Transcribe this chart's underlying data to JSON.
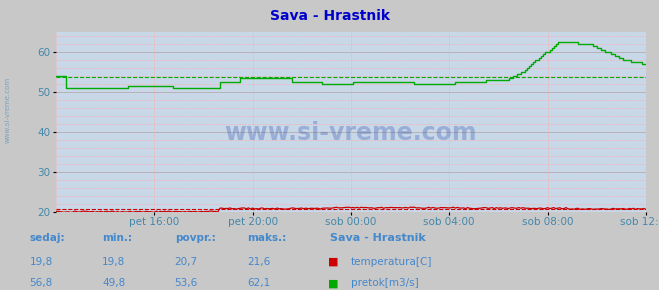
{
  "title": "Sava - Hrastnik",
  "title_color": "#0000cc",
  "bg_color": "#c8c8c8",
  "plot_bg_color": "#c8d8e8",
  "ylabel_color": "#4488aa",
  "xlabel_color": "#4488aa",
  "xlim": [
    0,
    288
  ],
  "ylim": [
    20,
    65
  ],
  "yticks": [
    20,
    30,
    40,
    50,
    60
  ],
  "xtick_labels": [
    "pet 16:00",
    "pet 20:00",
    "sob 00:00",
    "sob 04:00",
    "sob 08:00",
    "sob 12:00"
  ],
  "xtick_positions": [
    48,
    96,
    144,
    192,
    240,
    288
  ],
  "temp_color": "#cc0000",
  "flow_color": "#00aa00",
  "temp_avg": 20.7,
  "flow_avg": 53.6,
  "watermark": "www.si-vreme.com",
  "sidebar_text": "www.si-vreme.com",
  "legend_title": "Sava - Hrastnik",
  "legend_items": [
    "temperatura[C]",
    "pretok[m3/s]"
  ],
  "legend_colors": [
    "#cc0000",
    "#00aa00"
  ],
  "stats_labels": [
    "sedaj:",
    "min.:",
    "povpr.:",
    "maks.:"
  ],
  "stats_temp": [
    19.8,
    19.8,
    20.7,
    21.6
  ],
  "stats_flow": [
    56.8,
    49.8,
    53.6,
    62.1
  ],
  "stats_color": "#4488cc"
}
